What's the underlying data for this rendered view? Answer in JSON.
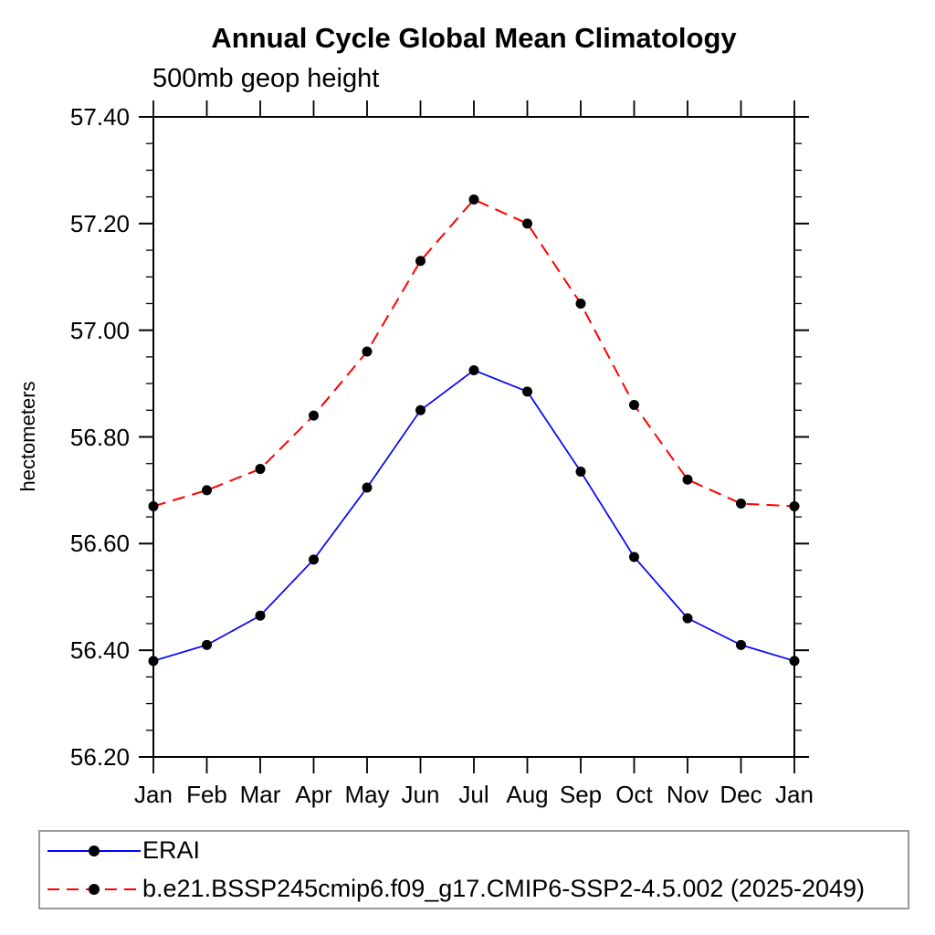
{
  "chart_data": {
    "type": "line",
    "title": "Annual Cycle Global Mean Climatology",
    "subtitle": "500mb geop height",
    "ylabel": "hectometers",
    "xlabel": "",
    "categories": [
      "Jan",
      "Feb",
      "Mar",
      "Apr",
      "May",
      "Jun",
      "Jul",
      "Aug",
      "Sep",
      "Oct",
      "Nov",
      "Dec",
      "Jan"
    ],
    "ylim": [
      56.2,
      57.4
    ],
    "ytick_labels": [
      "56.20",
      "56.40",
      "56.60",
      "56.80",
      "57.00",
      "57.20",
      "57.40"
    ],
    "ytick_step": 0.2,
    "yminor_step": 0.05,
    "grid": "off",
    "legend_position": "bottom-left-box",
    "axis_color": "#000000",
    "marker": {
      "shape": "filled-circle",
      "color": "#000000",
      "radius_px": 5.5
    },
    "series": [
      {
        "name": "ERAI",
        "color": "#0000ff",
        "line_style": "solid",
        "values": [
          56.38,
          56.41,
          56.465,
          56.57,
          56.705,
          56.85,
          56.925,
          56.885,
          56.735,
          56.575,
          56.46,
          56.41,
          56.38
        ]
      },
      {
        "name": "b.e21.BSSP245cmip6.f09_g17.CMIP6-SSP2-4.5.002 (2025-2049)",
        "color": "#ff0000",
        "line_style": "dashed",
        "values": [
          56.67,
          56.7,
          56.74,
          56.84,
          56.96,
          57.13,
          57.245,
          57.2,
          57.05,
          56.86,
          56.72,
          56.675,
          56.67
        ]
      }
    ]
  }
}
